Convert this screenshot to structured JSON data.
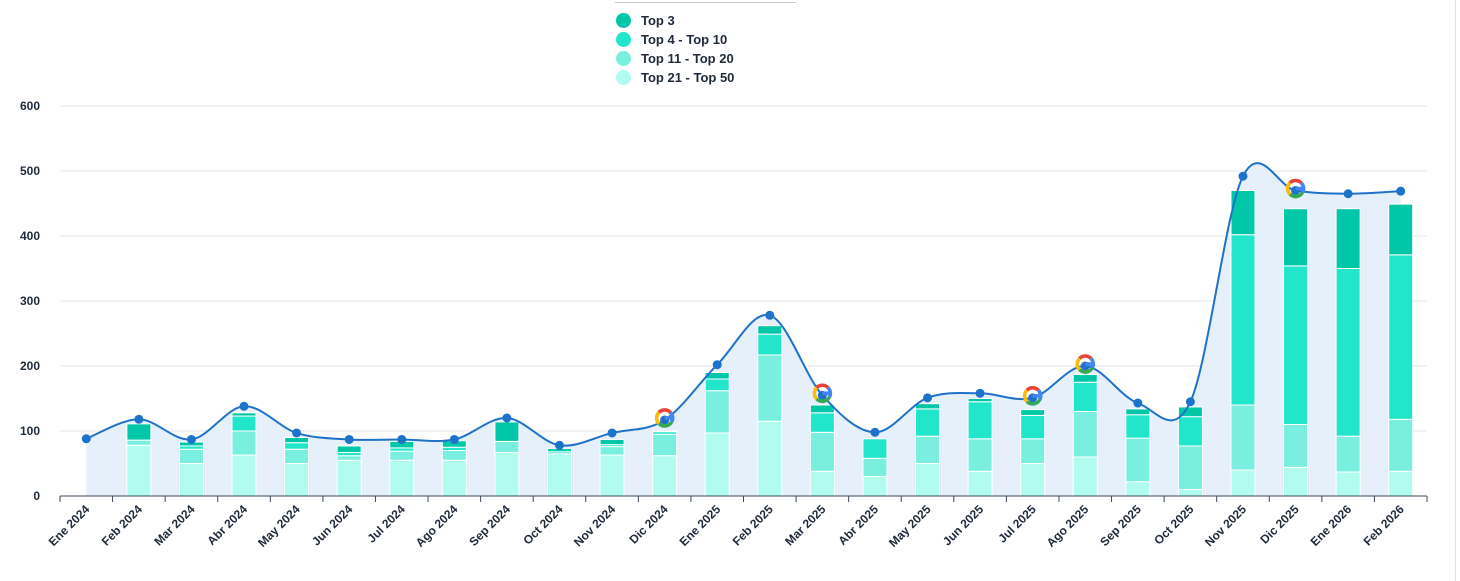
{
  "legend": {
    "items": [
      {
        "label": "Top 3",
        "color": "#00c7a8"
      },
      {
        "label": "Top 4 - Top 10",
        "color": "#21e6cb"
      },
      {
        "label": "Top 11 - Top 20",
        "color": "#7aeedf"
      },
      {
        "label": "Top 21 - Top 50",
        "color": "#b1fbef"
      }
    ]
  },
  "chart_data": {
    "type": "bar",
    "stacked": true,
    "categories": [
      "Ene 2024",
      "Feb 2024",
      "Mar 2024",
      "Abr 2024",
      "May 2024",
      "Jun 2024",
      "Jul 2024",
      "Ago 2024",
      "Sep 2024",
      "Oct 2024",
      "Nov 2024",
      "Dic 2024",
      "Ene 2025",
      "Feb 2025",
      "Mar 2025",
      "Abr 2025",
      "May 2025",
      "Jun 2025",
      "Jul 2025",
      "Ago 2025",
      "Sep 2025",
      "Oct 2025",
      "Nov 2025",
      "Dic 2025",
      "Ene 2026",
      "Feb 2026"
    ],
    "series": [
      {
        "name": "Top 21 - Top 50",
        "color": "#b1fbef",
        "values": [
          0,
          78,
          50,
          63,
          50,
          55,
          55,
          55,
          67,
          65,
          63,
          62,
          97,
          115,
          38,
          30,
          50,
          38,
          50,
          60,
          22,
          10,
          40,
          44,
          37,
          38
        ]
      },
      {
        "name": "Top 11 - Top 20",
        "color": "#7aeedf",
        "values": [
          0,
          8,
          22,
          37,
          22,
          7,
          14,
          15,
          17,
          0,
          13,
          33,
          65,
          102,
          60,
          28,
          42,
          50,
          38,
          70,
          67,
          67,
          100,
          66,
          55,
          80
        ]
      },
      {
        "name": "Top 4 - Top 10",
        "color": "#21e6cb",
        "values": [
          0,
          0,
          5,
          23,
          10,
          5,
          5,
          5,
          0,
          3,
          3,
          4,
          18,
          32,
          30,
          30,
          42,
          57,
          36,
          45,
          36,
          45,
          262,
          244,
          258,
          253
        ]
      },
      {
        "name": "Top 3",
        "color": "#00c7a8",
        "values": [
          0,
          25,
          6,
          5,
          8,
          10,
          10,
          10,
          30,
          5,
          8,
          1,
          10,
          13,
          12,
          0,
          8,
          5,
          9,
          12,
          9,
          15,
          68,
          88,
          92,
          78
        ]
      }
    ],
    "line": {
      "values": [
        88,
        118,
        87,
        138,
        97,
        87,
        87,
        87,
        120,
        78,
        97,
        117,
        202,
        278,
        155,
        98,
        151,
        158,
        151,
        200,
        143,
        145,
        492,
        470,
        465,
        469
      ],
      "color": "#1f72c9"
    },
    "google_update_months": [
      "Dic 2024",
      "Mar 2025",
      "Jul 2025",
      "Ago 2025",
      "Dic 2025"
    ],
    "ylim": [
      0,
      600
    ],
    "yticks": [
      0,
      100,
      200,
      300,
      400,
      500,
      600
    ],
    "grid": true,
    "legend_position": "top-center"
  }
}
